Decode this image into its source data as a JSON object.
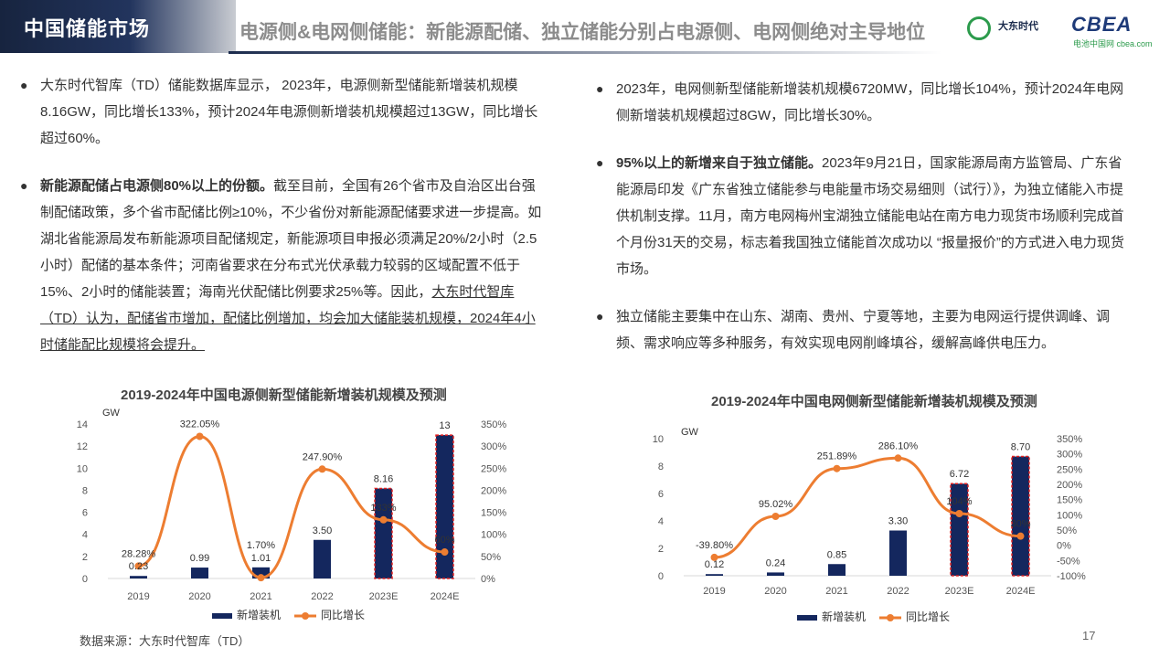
{
  "header": {
    "section": "中国储能市场",
    "title": "电源侧&电网侧储能：新能源配储、独立储能分别占电源侧、电网侧绝对主导地位",
    "logo1": "大东时代",
    "logo2": "CBEA",
    "logo2_sub": "电池中国网 cbea.com"
  },
  "left": {
    "p1": "大东时代智库（TD）储能数据库显示， 2023年，电源侧新型储能新增装机规模8.16GW，同比增长133%，预计2024年电源侧新增装机规模超过13GW，同比增长超过60%。",
    "p2_bold": "新能源配储占电源侧80%以上的份额。",
    "p2_rest": "截至目前，全国有26个省市及自治区出台强制配储政策，多个省市配储比例≥10%，不少省份对新能源配储要求进一步提高。如湖北省能源局发布新能源项目配储规定，新能源项目申报必须满足20%/2小时（2.5小时）配储的基本条件；河南省要求在分布式光伏承载力较弱的区域配置不低于15%、2小时的储能装置；海南光伏配储比例要求25%等。因此，",
    "p2_under": "大东时代智库（TD）认为，配储省市增加，配储比例增加，均会加大储能装机规模，2024年4小时储能配比规模将会提升。"
  },
  "right": {
    "p1": "2023年，电网侧新型储能新增装机规模6720MW，同比增长104%，预计2024年电网侧新增装机规模超过8GW，同比增长30%。",
    "p2_bold": "95%以上的新增来自于独立储能。",
    "p2_rest": "2023年9月21日，国家能源局南方监管局、广东省能源局印发《广东省独立储能参与电能量市场交易细则（试行）》，为独立储能入市提供机制支撑。11月，南方电网梅州宝湖独立储能电站在南方电力现货市场顺利完成首个月份31天的交易，标志着我国独立储能首次成功以 “报量报价”的方式进入电力现货市场。",
    "p3": "独立储能主要集中在山东、湖南、贵州、宁夏等地，主要为电网运行提供调峰、调频、需求响应等多种服务，有效实现电网削峰填谷，缓解高峰供电压力。"
  },
  "chart_data": [
    {
      "type": "bar",
      "title": "2019-2024年中国电源侧新型储能新增装机规模及预测",
      "ylabel": "GW",
      "categories": [
        "2019",
        "2020",
        "2021",
        "2022",
        "2023E",
        "2024E"
      ],
      "series": [
        {
          "name": "新增装机",
          "type": "bar",
          "values": [
            0.23,
            0.99,
            1.01,
            3.5,
            8.16,
            13
          ],
          "labels": [
            "0.23",
            "0.99",
            "1.01",
            "3.50",
            "8.16",
            "13"
          ],
          "color": "#14275e"
        },
        {
          "name": "同比增长",
          "type": "line",
          "axis": "right",
          "values": [
            28.28,
            322.05,
            1.7,
            247.9,
            133,
            60
          ],
          "labels": [
            "28.28%",
            "322.05%",
            "1.70%",
            "247.90%",
            "133%",
            "60%"
          ],
          "color": "#ed7d31"
        }
      ],
      "ylim": [
        0,
        14
      ],
      "yticks": [
        "0",
        "2",
        "4",
        "6",
        "8",
        "10",
        "12",
        "14"
      ],
      "y2lim": [
        0,
        350
      ],
      "y2ticks": [
        "0%",
        "50%",
        "100%",
        "150%",
        "200%",
        "250%",
        "300%",
        "350%"
      ],
      "highlight": [
        "2023E",
        "2024E"
      ],
      "legend": "bottom"
    },
    {
      "type": "bar",
      "title": "2019-2024年中国电网侧新型储能新增装机规模及预测",
      "ylabel": "GW",
      "categories": [
        "2019",
        "2020",
        "2021",
        "2022",
        "2023E",
        "2024E"
      ],
      "series": [
        {
          "name": "新增装机",
          "type": "bar",
          "values": [
            0.12,
            0.24,
            0.85,
            3.3,
            6.72,
            8.7
          ],
          "labels": [
            "0.12",
            "0.24",
            "0.85",
            "3.30",
            "6.72",
            "8.70"
          ],
          "color": "#14275e"
        },
        {
          "name": "同比增长",
          "type": "line",
          "axis": "right",
          "values": [
            -39.8,
            95.02,
            251.89,
            286.1,
            104,
            30
          ],
          "labels": [
            "-39.80%",
            "95.02%",
            "251.89%",
            "286.10%",
            "104%",
            "30%"
          ],
          "color": "#ed7d31"
        }
      ],
      "ylim": [
        0,
        10
      ],
      "yticks": [
        "0",
        "2",
        "4",
        "6",
        "8",
        "10"
      ],
      "y2lim": [
        -100,
        350
      ],
      "y2ticks": [
        "-100%",
        "-50%",
        "0%",
        "50%",
        "100%",
        "150%",
        "200%",
        "250%",
        "300%",
        "350%"
      ],
      "highlight": [
        "2023E",
        "2024E"
      ],
      "legend": "bottom"
    }
  ],
  "footer": {
    "source": "数据来源：大东时代智库（TD）",
    "page": "17"
  }
}
